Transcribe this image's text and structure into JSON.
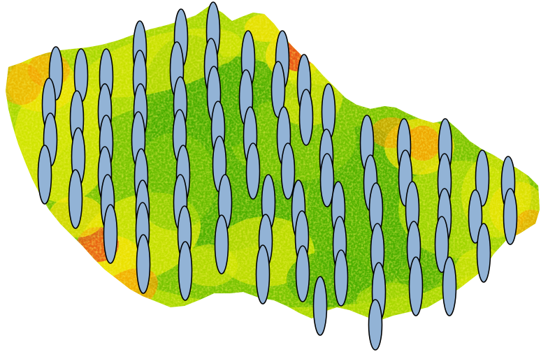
{
  "map": {
    "elevation_colors": {
      "lowland": "#4aae00",
      "low": "#78c400",
      "mid_low": "#a8d800",
      "mid": "#d6e600",
      "upland": "#f2e200",
      "high": "#f59a00",
      "peak": "#e8321c"
    },
    "marker_fill": "#92b3d6",
    "marker_stroke": "#000000"
  }
}
